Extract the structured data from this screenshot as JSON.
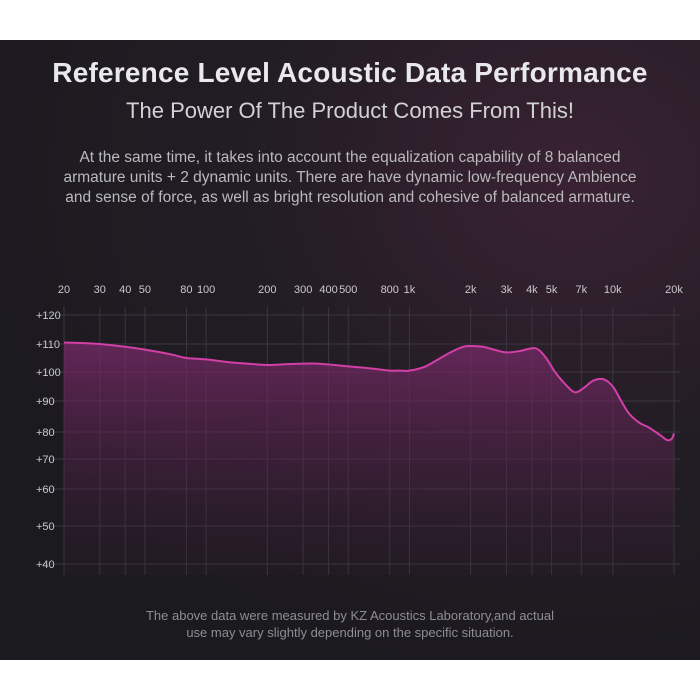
{
  "header": {
    "title": "Reference Level Acoustic Data Performance",
    "subtitle": "The Power Of The Product Comes From This!"
  },
  "description": {
    "line1": "At the same time, it takes into account the equalization capability of 8 balanced",
    "line2": "armature units + 2 dynamic units. There are have dynamic low-frequency Ambience",
    "line3": "and sense of force, as well as bright resolution and cohesive of balanced armature."
  },
  "footnote": {
    "line1": "The above data were measured by KZ Acoustics Laboratory,and actual",
    "line2": "use may vary slightly depending on the specific situation."
  },
  "colors": {
    "curve": "#d23fa6",
    "fill_top": "#7a2a6a",
    "grid": "#3a3640",
    "background": "#1c1b20"
  },
  "chart_data": {
    "type": "line",
    "title": "",
    "xlabel": "",
    "ylabel": "",
    "x_scale": "log",
    "xlim": [
      20,
      20000
    ],
    "grid": true,
    "x_ticks": [
      {
        "value": 20,
        "label": "20"
      },
      {
        "value": 30,
        "label": "30"
      },
      {
        "value": 40,
        "label": "40"
      },
      {
        "value": 50,
        "label": "50"
      },
      {
        "value": 80,
        "label": "80"
      },
      {
        "value": 100,
        "label": "100"
      },
      {
        "value": 200,
        "label": "200"
      },
      {
        "value": 300,
        "label": "300"
      },
      {
        "value": 400,
        "label": "400"
      },
      {
        "value": 500,
        "label": "500"
      },
      {
        "value": 800,
        "label": "800"
      },
      {
        "value": 1000,
        "label": "1k"
      },
      {
        "value": 2000,
        "label": "2k"
      },
      {
        "value": 3000,
        "label": "3k"
      },
      {
        "value": 4000,
        "label": "4k"
      },
      {
        "value": 5000,
        "label": "5k"
      },
      {
        "value": 7000,
        "label": "7k"
      },
      {
        "value": 10000,
        "label": "10k"
      },
      {
        "value": 20000,
        "label": "20k"
      }
    ],
    "y_ticks": [
      "+120",
      "+110",
      "+100",
      "+90",
      "+80",
      "+70",
      "+60",
      "+50",
      "+40"
    ],
    "series": [
      {
        "x": [
          20,
          25,
          30,
          40,
          50,
          60,
          70,
          80,
          100,
          130,
          160,
          200,
          250,
          300,
          350,
          400,
          500,
          600,
          700,
          800,
          900,
          1000,
          1200,
          1500,
          1800,
          2000,
          2300,
          2600,
          3000,
          3500,
          4000,
          4300,
          4700,
          5200,
          5800,
          6500,
          7200,
          8000,
          9000,
          10000,
          11000,
          12000,
          13500,
          15000,
          17000,
          18500,
          19500,
          20000
        ],
        "y": [
          110.5,
          110.3,
          110,
          109,
          108,
          107,
          106,
          105,
          104.5,
          103.5,
          103,
          102.5,
          102.8,
          103,
          103,
          102.7,
          102,
          101.5,
          101,
          100.5,
          100.5,
          100.5,
          102,
          106,
          108.8,
          109.3,
          109,
          108,
          107,
          107.5,
          108.5,
          108,
          105,
          100,
          96,
          93,
          94.5,
          97,
          97.5,
          95,
          90,
          86,
          83,
          81.5,
          79,
          77,
          77.5,
          79.5
        ]
      }
    ]
  }
}
